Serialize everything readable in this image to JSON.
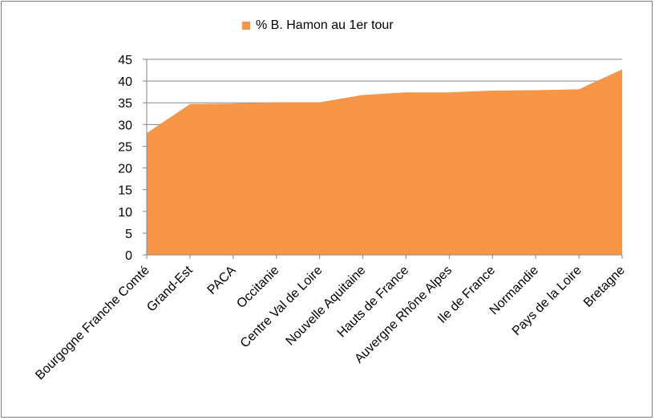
{
  "chart_data": {
    "type": "area",
    "categories": [
      "Bourgogne Franche Comté",
      "Grand-Est",
      "PACA",
      "Occitanie",
      "Centre Val de Loire",
      "Nouvelle Aquitaine",
      "Hauts de France",
      "Auvergne Rhône Alpes",
      "Ile de France",
      "Normandie",
      "Pays de la Loire",
      "Bretagne"
    ],
    "series": [
      {
        "name": "% B. Hamon au 1er tour",
        "values": [
          28.0,
          34.7,
          34.8,
          35.1,
          35.1,
          36.8,
          37.4,
          37.4,
          37.8,
          37.9,
          38.1,
          42.7
        ]
      }
    ],
    "ylim": [
      0,
      45
    ],
    "yticks": [
      0,
      5,
      10,
      15,
      20,
      25,
      30,
      35,
      40,
      45
    ],
    "grid": true,
    "legend_position": "top",
    "colors": {
      "series": "#f79646",
      "grid": "#868686",
      "axis": "#868686"
    }
  }
}
